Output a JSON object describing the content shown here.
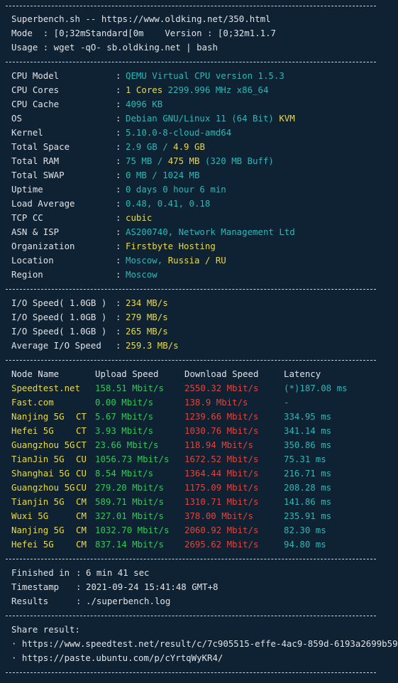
{
  "header": {
    "line1": "Superbench.sh -- https://www.oldking.net/350.html",
    "line2": "Mode  : [0;32mStandard[0m    Version : [0;32m1.1.7",
    "line3": "Usage : wget -qO- sb.oldking.net | bash"
  },
  "separator": "----------------------------------------------------------------------",
  "sysinfo": [
    {
      "label": "CPU Model",
      "parts": [
        {
          "t": "QEMU Virtual CPU version 1.5.3",
          "c": "cy"
        }
      ]
    },
    {
      "label": "CPU Cores",
      "parts": [
        {
          "t": "1 Cores",
          "c": "y"
        },
        {
          "t": " 2299.996 MHz x86_64",
          "c": "cy"
        }
      ]
    },
    {
      "label": "CPU Cache",
      "parts": [
        {
          "t": "4096 KB",
          "c": "cy"
        }
      ]
    },
    {
      "label": "OS",
      "parts": [
        {
          "t": "Debian GNU/Linux 11 (64 Bit)",
          "c": "cy"
        },
        {
          "t": " KVM",
          "c": "y"
        }
      ]
    },
    {
      "label": "Kernel",
      "parts": [
        {
          "t": "5.10.0-8-cloud-amd64",
          "c": "cy"
        }
      ]
    },
    {
      "label": "Total Space",
      "parts": [
        {
          "t": "2.9 GB / ",
          "c": "cy"
        },
        {
          "t": "4.9 GB",
          "c": "y"
        }
      ]
    },
    {
      "label": "Total RAM",
      "parts": [
        {
          "t": "75 MB / ",
          "c": "cy"
        },
        {
          "t": "475 MB",
          "c": "y"
        },
        {
          "t": " (320 MB Buff)",
          "c": "cy"
        }
      ]
    },
    {
      "label": "Total SWAP",
      "parts": [
        {
          "t": "0 MB / 1024 MB",
          "c": "cy"
        }
      ]
    },
    {
      "label": "Uptime",
      "parts": [
        {
          "t": "0 days 0 hour 6 min",
          "c": "cy"
        }
      ]
    },
    {
      "label": "Load Average",
      "parts": [
        {
          "t": "0.48, 0.41, 0.18",
          "c": "cy"
        }
      ]
    },
    {
      "label": "TCP CC",
      "parts": [
        {
          "t": "cubic",
          "c": "y"
        }
      ]
    },
    {
      "label": "ASN & ISP",
      "parts": [
        {
          "t": "AS200740, Network Management Ltd",
          "c": "cy"
        }
      ]
    },
    {
      "label": "Organization",
      "parts": [
        {
          "t": "Firstbyte Hosting",
          "c": "y"
        }
      ]
    },
    {
      "label": "Location",
      "parts": [
        {
          "t": "Moscow, ",
          "c": "cy"
        },
        {
          "t": "Russia / RU",
          "c": "y"
        }
      ]
    },
    {
      "label": "Region",
      "parts": [
        {
          "t": "Moscow",
          "c": "cy"
        }
      ]
    }
  ],
  "io": [
    {
      "label": "I/O Speed( 1.0GB )",
      "value": "234 MB/s"
    },
    {
      "label": "I/O Speed( 1.0GB )",
      "value": "279 MB/s"
    },
    {
      "label": "I/O Speed( 1.0GB )",
      "value": "265 MB/s"
    },
    {
      "label": "Average I/O Speed",
      "value": "259.3 MB/s"
    }
  ],
  "speedtest": {
    "headers": {
      "node": "Node Name",
      "upload": "Upload Speed",
      "download": "Download Speed",
      "latency": "Latency"
    },
    "rows": [
      {
        "node": "Speedtest.net",
        "isp": "",
        "upload": "158.51 Mbit/s",
        "download": "2550.32 Mbit/s",
        "latency": "(*)187.08 ms"
      },
      {
        "node": "Fast.com",
        "isp": "",
        "upload": "0.00 Mbit/s",
        "download": "138.9 Mbit/s",
        "latency": "-"
      },
      {
        "node": "Nanjing 5G",
        "isp": "CT",
        "upload": "5.67 Mbit/s",
        "download": "1239.66 Mbit/s",
        "latency": "334.95 ms"
      },
      {
        "node": "Hefei 5G",
        "isp": "CT",
        "upload": "3.93 Mbit/s",
        "download": "1030.76 Mbit/s",
        "latency": "341.14 ms"
      },
      {
        "node": "Guangzhou 5G",
        "isp": "CT",
        "upload": "23.66 Mbit/s",
        "download": "118.94 Mbit/s",
        "latency": "350.86 ms"
      },
      {
        "node": "TianJin 5G",
        "isp": "CU",
        "upload": "1056.73 Mbit/s",
        "download": "1672.52 Mbit/s",
        "latency": "75.31 ms"
      },
      {
        "node": "Shanghai 5G",
        "isp": "CU",
        "upload": "8.54 Mbit/s",
        "download": "1364.44 Mbit/s",
        "latency": "216.71 ms"
      },
      {
        "node": "Guangzhou 5G",
        "isp": "CU",
        "upload": "279.20 Mbit/s",
        "download": "1175.09 Mbit/s",
        "latency": "208.28 ms"
      },
      {
        "node": "Tianjin 5G",
        "isp": "CM",
        "upload": "589.71 Mbit/s",
        "download": "1310.71 Mbit/s",
        "latency": "141.86 ms"
      },
      {
        "node": "Wuxi 5G",
        "isp": "CM",
        "upload": "327.01 Mbit/s",
        "download": "378.00 Mbit/s",
        "latency": "235.91 ms"
      },
      {
        "node": "Nanjing 5G",
        "isp": "CM",
        "upload": "1032.70 Mbit/s",
        "download": "2060.92 Mbit/s",
        "latency": "82.30 ms"
      },
      {
        "node": "Hefei 5G",
        "isp": "CM",
        "upload": "837.14 Mbit/s",
        "download": "2695.62 Mbit/s",
        "latency": "94.80 ms"
      }
    ]
  },
  "footer": [
    {
      "label": "Finished in",
      "value": "6 min 41 sec"
    },
    {
      "label": "Timestamp",
      "value": "2021-09-24 15:41:48 GMT+8"
    },
    {
      "label": "Results",
      "value": "./superbench.log"
    }
  ],
  "share": {
    "title": "Share result:",
    "links": [
      "· https://www.speedtest.net/result/c/7c905515-effe-4ac9-859d-6193a2699b59",
      "· https://paste.ubuntu.com/p/cYrtqWyKR4/"
    ]
  },
  "colors": {
    "background": "#0f2233",
    "text": "#dfe3e8",
    "cyan": "#2fb6b6",
    "yellow": "#e8d94a",
    "green": "#34c759",
    "red": "#e0443c"
  }
}
